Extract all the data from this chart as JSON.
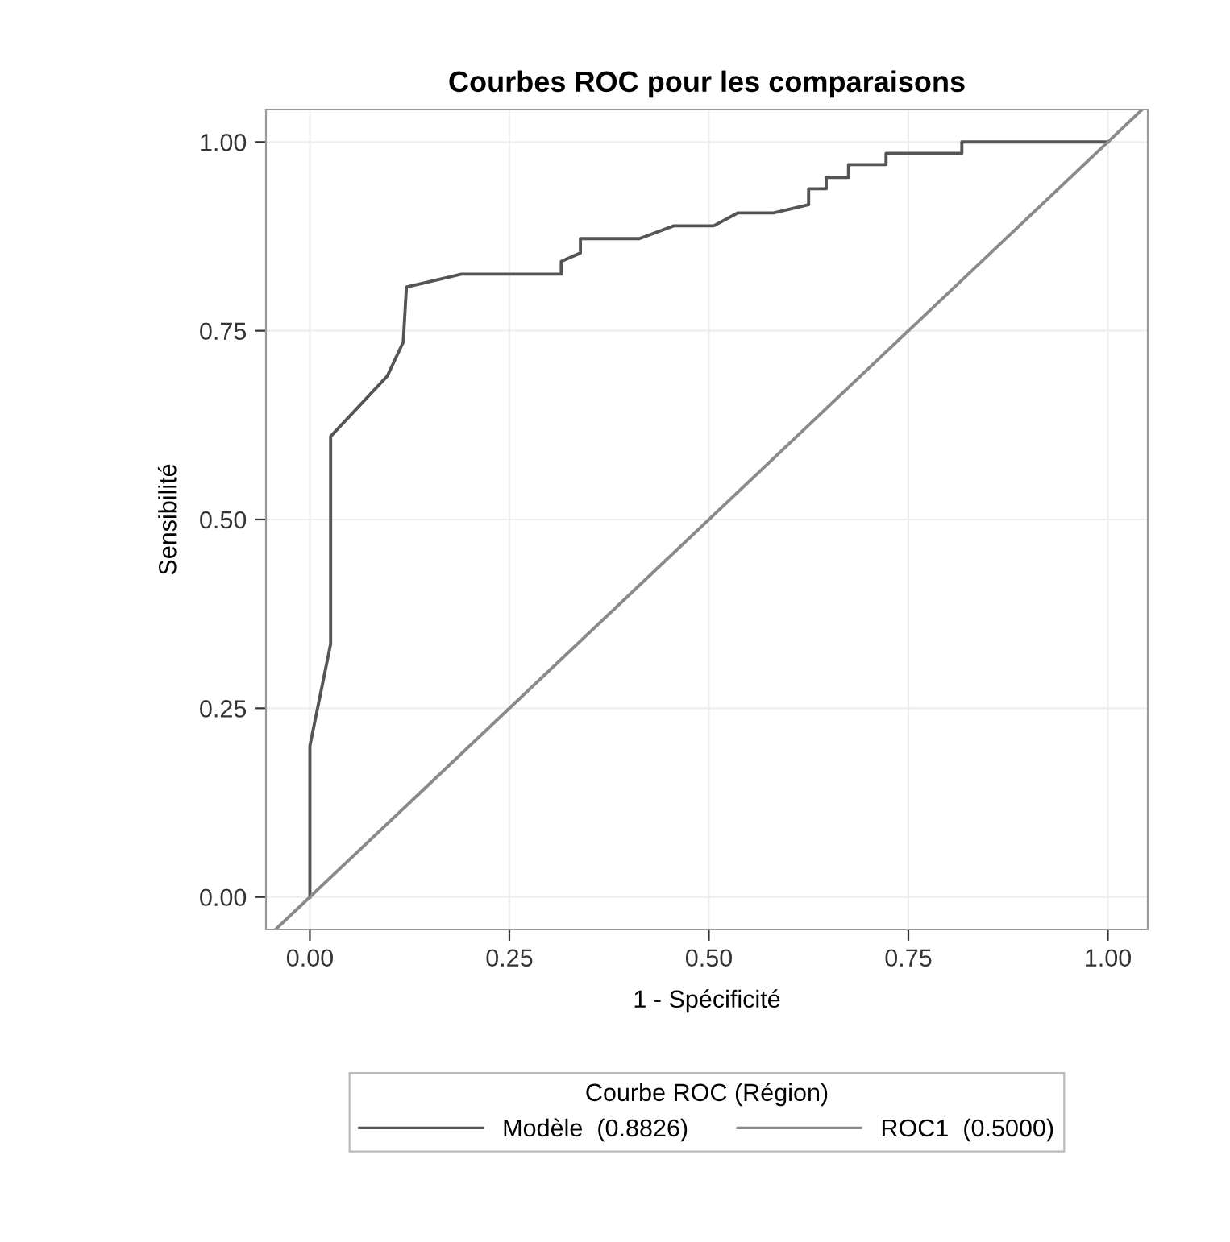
{
  "chart_data": {
    "type": "line",
    "title": "Courbes ROC pour les comparaisons",
    "xlabel": "1 - Spécificité",
    "ylabel": "Sensibilité",
    "legend_title": "Courbe ROC (Région)",
    "legend": "bottom",
    "grid": true,
    "marker": "none",
    "line_style": "solid",
    "xlim": [
      -0.055,
      1.05
    ],
    "ylim": [
      -0.043,
      1.043
    ],
    "xticks": [
      {
        "value": 0,
        "label": "0.00"
      },
      {
        "value": 0.25,
        "label": "0.25"
      },
      {
        "value": 0.5,
        "label": "0.50"
      },
      {
        "value": 0.75,
        "label": "0.75"
      },
      {
        "value": 1,
        "label": "1.00"
      }
    ],
    "yticks": [
      {
        "value": 0,
        "label": "0.00"
      },
      {
        "value": 0.25,
        "label": "0.25"
      },
      {
        "value": 0.5,
        "label": "0.50"
      },
      {
        "value": 0.75,
        "label": "0.75"
      },
      {
        "value": 1,
        "label": "1.00"
      }
    ],
    "series": [
      {
        "name": "Modèle  (0.8826)",
        "color": "#555555",
        "x": [
          0,
          0,
          0.026,
          0.026,
          0.097,
          0.117,
          0.121,
          0.19,
          0.315,
          0.315,
          0.339,
          0.339,
          0.413,
          0.456,
          0.506,
          0.536,
          0.581,
          0.625,
          0.625,
          0.647,
          0.647,
          0.675,
          0.675,
          0.722,
          0.722,
          0.817,
          0.817,
          1
        ],
        "values": [
          0,
          0.2,
          0.335,
          0.61,
          0.69,
          0.735,
          0.808,
          0.825,
          0.825,
          0.842,
          0.853,
          0.872,
          0.872,
          0.889,
          0.889,
          0.906,
          0.906,
          0.917,
          0.938,
          0.938,
          0.953,
          0.953,
          0.97,
          0.97,
          0.985,
          0.985,
          1,
          1
        ]
      },
      {
        "name": "ROC1  (0.5000)",
        "color": "#8a8a8a",
        "x": [
          -0.043,
          1.043
        ],
        "values": [
          -0.043,
          1.043
        ]
      }
    ]
  }
}
